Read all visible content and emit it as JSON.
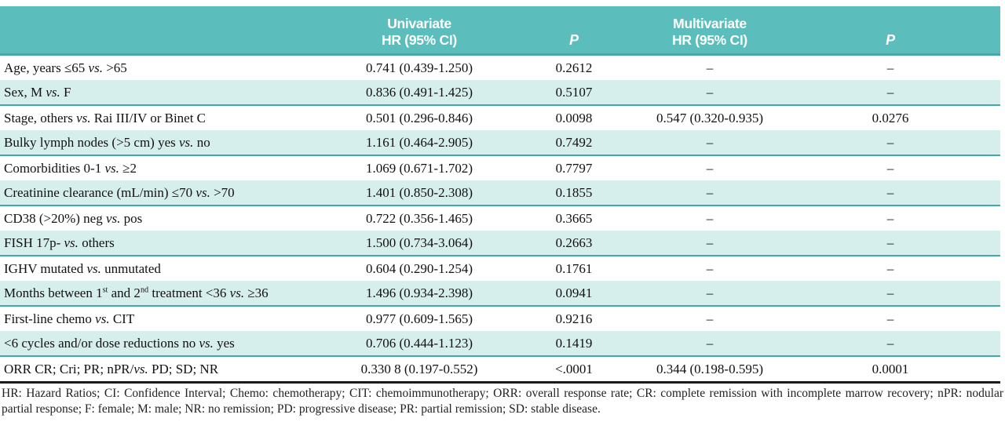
{
  "colors": {
    "header_bg": "#5CBEBC",
    "shaded_row_bg": "#D6EEEC",
    "row_divider": "#48A7A7",
    "table_bottom": "#1A1A1A"
  },
  "table": {
    "header": {
      "univariate_line1": "Univariate",
      "univariate_line2": "HR (95% CI)",
      "p_univariate": "P",
      "multivariate_line1": "Multivariate",
      "multivariate_line2": "HR (95% CI)",
      "p_multivariate": "P"
    },
    "rows": [
      {
        "label": "Age, years ≤65 vs. >65",
        "uni_hr": "0.741 (0.439-1.250)",
        "uni_p": "0.2612",
        "multi_hr": "–",
        "multi_p": "–"
      },
      {
        "label": "Sex, M vs. F",
        "uni_hr": "0.836 (0.491-1.425)",
        "uni_p": "0.5107",
        "multi_hr": "–",
        "multi_p": "–"
      },
      {
        "label": "Stage, others vs. Rai III/IV or Binet C",
        "uni_hr": "0.501 (0.296-0.846)",
        "uni_p": "0.0098",
        "multi_hr": "0.547 (0.320-0.935)",
        "multi_p": "0.0276"
      },
      {
        "label": "Bulky lymph nodes (>5 cm) yes vs. no",
        "uni_hr": "1.161 (0.464-2.905)",
        "uni_p": "0.7492",
        "multi_hr": "–",
        "multi_p": "–"
      },
      {
        "label": "Comorbidities 0-1 vs. ≥2",
        "uni_hr": "1.069 (0.671-1.702)",
        "uni_p": "0.7797",
        "multi_hr": "–",
        "multi_p": "–"
      },
      {
        "label": "Creatinine clearance (mL/min) ≤70 vs. >70",
        "uni_hr": "1.401 (0.850-2.308)",
        "uni_p": "0.1855",
        "multi_hr": "–",
        "multi_p": "–"
      },
      {
        "label": "CD38 (>20%) neg vs. pos",
        "uni_hr": "0.722 (0.356-1.465)",
        "uni_p": "0.3665",
        "multi_hr": "–",
        "multi_p": "–"
      },
      {
        "label": "FISH 17p- vs. others",
        "uni_hr": "1.500 (0.734-3.064)",
        "uni_p": "0.2663",
        "multi_hr": "–",
        "multi_p": "–"
      },
      {
        "label": "IGHV mutated vs. unmutated",
        "uni_hr": "0.604 (0.290-1.254)",
        "uni_p": "0.1761",
        "multi_hr": "–",
        "multi_p": "–"
      },
      {
        "label": "Months between 1^st and 2^nd treatment <36 vs. ≥36",
        "uni_hr": "1.496 (0.934-2.398)",
        "uni_p": "0.0941",
        "multi_hr": "–",
        "multi_p": "–"
      },
      {
        "label": "First-line chemo vs. CIT",
        "uni_hr": "0.977 (0.609-1.565)",
        "uni_p": "0.9216",
        "multi_hr": "–",
        "multi_p": "–"
      },
      {
        "label": "<6 cycles and/or dose reductions no vs. yes",
        "uni_hr": "0.706 (0.444-1.123)",
        "uni_p": "0.1419",
        "multi_hr": "–",
        "multi_p": "–"
      },
      {
        "label": "ORR CR; Cri; PR; nPR/vs. PD; SD; NR",
        "uni_hr": "0.330 8 (0.197-0.552)",
        "uni_p": "<.0001",
        "multi_hr": "0.344 (0.198-0.595)",
        "multi_p": "0.0001"
      }
    ],
    "footnote": "HR: Hazard Ratios; CI: Confidence Interval; Chemo: chemotherapy; CIT: chemoimmunotherapy; ORR: overall response rate; CR: complete remission with incomplete marrow recovery; nPR: nodular partial response; F: female; M: male; NR: no remission; PD: progressive disease; PR: partial remission; SD: stable disease."
  }
}
